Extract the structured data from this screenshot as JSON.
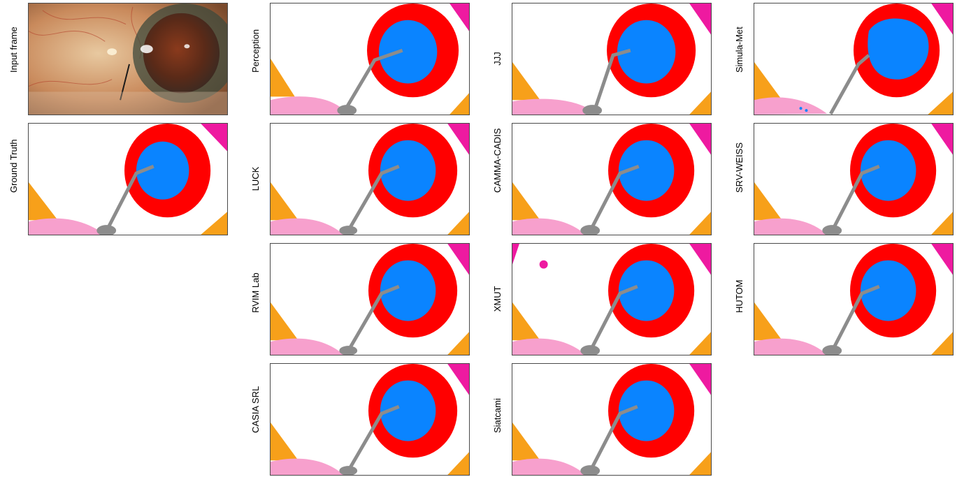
{
  "figure": {
    "input_label": "Input frame",
    "ground_truth_label": "Ground Truth",
    "methods": [
      "Perception",
      "JJJ",
      "Simula-Met",
      "LUCK",
      "CAMMA-CADIS",
      "SRV-WEISS",
      "RVIM Lab",
      "XMUT",
      "HUTOM",
      "CASIA SRL",
      "Siatcami"
    ]
  },
  "colors": {
    "iris": "#ff0000",
    "pupil": "#0a84ff",
    "instrument": "#8c8c8c",
    "skin_pink": "#f7a0cd",
    "orange": "#f7a01a",
    "magenta": "#ee1aa0",
    "background": "#ffffff"
  }
}
